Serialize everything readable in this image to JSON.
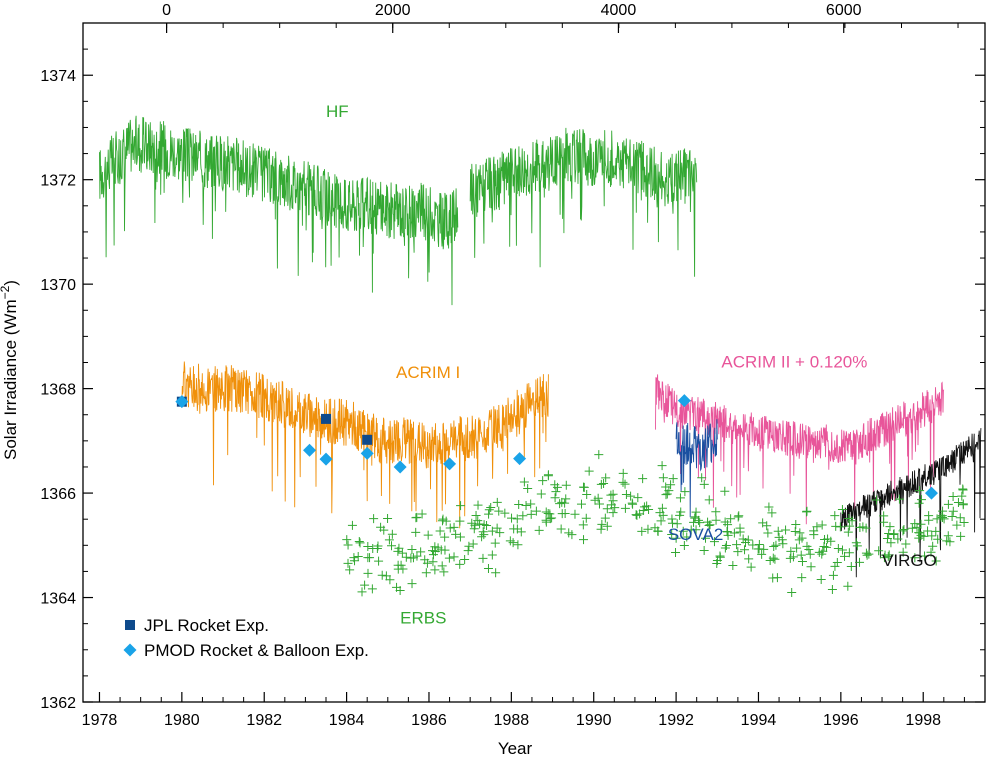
{
  "chart_data": {
    "type": "line",
    "xlabel": "Year",
    "ylabel": "Solar Irradiance (Wm",
    "ylabel_sup": "−2",
    "ylabel_close": ")",
    "xlim": [
      1977.6,
      1999.5
    ],
    "ylim": [
      1362,
      1375
    ],
    "top_axis_ticks": [
      "0",
      "2000",
      "4000",
      "6000"
    ],
    "top_axis_years": [
      1979.63,
      1985.12,
      1990.6,
      1996.07
    ],
    "x_ticks": [
      1978,
      1980,
      1982,
      1984,
      1986,
      1988,
      1990,
      1992,
      1994,
      1996,
      1998
    ],
    "y_ticks": [
      1362,
      1364,
      1366,
      1368,
      1370,
      1372,
      1374
    ],
    "grid": false,
    "legend_position": "bottom-left",
    "legend": [
      {
        "label": "JPL Rocket Exp.",
        "marker": "square",
        "color": "#0e4a8c"
      },
      {
        "label": "PMOD Rocket & Balloon Exp.",
        "marker": "diamond",
        "color": "#1aa3e8"
      }
    ],
    "series": [
      {
        "name": "HF",
        "color": "#33a832",
        "label_pos": [
          1983.5,
          1373.2
        ],
        "segments": [
          {
            "x": [
              1978.0,
              1978.8,
              1979.6,
              1980.4,
              1981.2,
              1982.0,
              1982.8,
              1983.4,
              1984.0,
              1984.6,
              1985.2,
              1985.8,
              1986.4,
              1986.7
            ],
            "y": [
              1372.1,
              1372.7,
              1372.6,
              1372.4,
              1372.3,
              1372.1,
              1371.9,
              1371.7,
              1371.5,
              1371.5,
              1371.4,
              1371.4,
              1371.2,
              1371.3
            ]
          },
          {
            "x": [
              1987.0,
              1987.6,
              1988.2,
              1988.8,
              1989.4,
              1990.0,
              1990.6,
              1991.2,
              1991.8,
              1992.5
            ],
            "y": [
              1371.8,
              1371.9,
              1372.2,
              1372.3,
              1372.5,
              1372.4,
              1372.4,
              1372.2,
              1372.0,
              1372.1
            ]
          }
        ]
      },
      {
        "name": "ACRIM I",
        "color": "#f0900a",
        "label_pos": [
          1985.2,
          1368.2
        ],
        "segments": [
          {
            "x": [
              1980.0,
              1980.6,
              1981.2,
              1981.8,
              1982.4,
              1983.0,
              1983.6,
              1984.2,
              1984.8,
              1985.4,
              1986.0,
              1986.6,
              1987.2,
              1987.8,
              1988.4,
              1988.9
            ],
            "y": [
              1368.1,
              1368.0,
              1368.0,
              1367.9,
              1367.7,
              1367.5,
              1367.4,
              1367.3,
              1367.0,
              1367.0,
              1366.9,
              1367.0,
              1367.1,
              1367.3,
              1367.7,
              1367.9
            ]
          }
        ]
      },
      {
        "name": "ACRIM II + 0.120%",
        "color": "#e8559a",
        "label_pos": [
          1993.1,
          1368.4
        ],
        "segments": [
          {
            "x": [
              1991.5,
              1992.0,
              1992.5,
              1993.0,
              1993.5,
              1994.0,
              1994.5,
              1995.0,
              1995.5,
              1996.0,
              1996.5,
              1997.0,
              1997.5,
              1998.0,
              1998.5
            ],
            "y": [
              1368.0,
              1367.6,
              1367.5,
              1367.4,
              1367.2,
              1367.2,
              1367.1,
              1367.0,
              1367.0,
              1366.9,
              1367.0,
              1367.2,
              1367.4,
              1367.6,
              1367.8
            ]
          }
        ]
      },
      {
        "name": "SOVA2",
        "color": "#1a4fa0",
        "label_pos": [
          1991.8,
          1365.1
        ],
        "segments": [
          {
            "x": [
              1992.0,
              1992.2,
              1992.4,
              1992.6,
              1992.8,
              1993.0
            ],
            "y": [
              1367.1,
              1366.9,
              1367.0,
              1366.8,
              1366.9,
              1367.0
            ]
          }
        ]
      },
      {
        "name": "VIRGO",
        "color": "#111111",
        "label_pos": [
          1997.0,
          1364.6
        ],
        "segments": [
          {
            "x": [
              1996.0,
              1996.5,
              1997.0,
              1997.5,
              1998.0,
              1998.5,
              1999.0,
              1999.4
            ],
            "y": [
              1365.5,
              1365.7,
              1365.9,
              1366.1,
              1366.3,
              1366.5,
              1366.8,
              1367.0
            ]
          }
        ]
      },
      {
        "name": "ERBS",
        "color": "#33a832",
        "label_pos": [
          1985.3,
          1363.5
        ],
        "type": "scatter",
        "trend": {
          "x": [
            1984.0,
            1986.0,
            1988.0,
            1990.0,
            1992.0,
            1994.0,
            1996.0,
            1998.0,
            1999.0
          ],
          "y": [
            1364.8,
            1364.9,
            1365.4,
            1366.0,
            1365.7,
            1365.0,
            1364.9,
            1365.3,
            1365.6
          ]
        }
      }
    ],
    "jpl_points": {
      "x": [
        1980.0,
        1983.5,
        1984.5
      ],
      "y": [
        1367.75,
        1367.42,
        1367.02
      ]
    },
    "pmod_points": {
      "x": [
        1980.0,
        1983.1,
        1983.5,
        1984.5,
        1985.3,
        1986.5,
        1988.2,
        1992.2,
        1998.2
      ],
      "y": [
        1367.75,
        1366.82,
        1366.65,
        1366.76,
        1366.5,
        1366.56,
        1366.66,
        1367.77,
        1366.0
      ]
    }
  }
}
